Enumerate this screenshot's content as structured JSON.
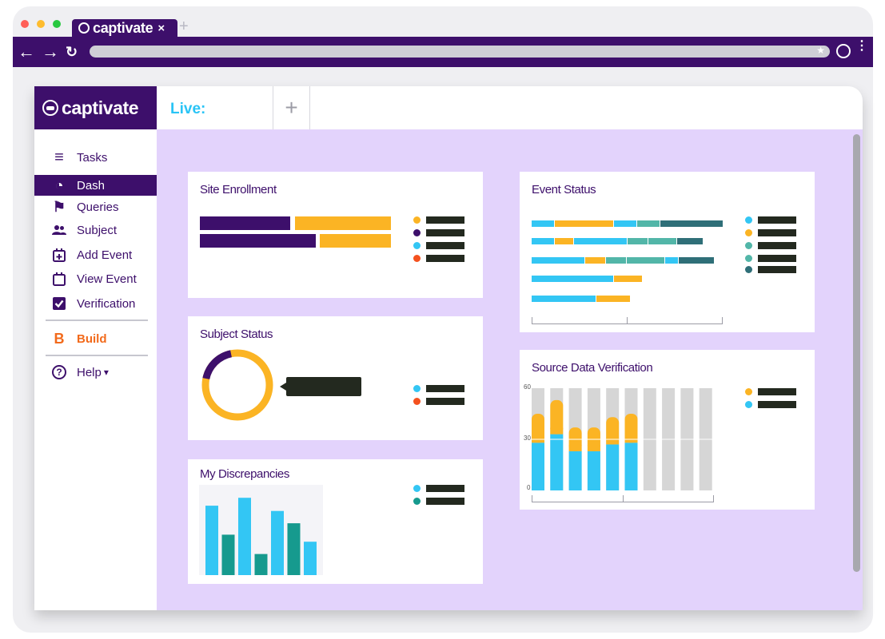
{
  "browser": {
    "tab_title": "captivate",
    "tab_close": "×",
    "new_tab": "+",
    "back": "←",
    "forward": "→",
    "reload": "↻",
    "bookmark": "★",
    "menu": "⋮",
    "traffic_colors": [
      "#ff5f57",
      "#febc2e",
      "#28c840"
    ]
  },
  "app": {
    "logo_text": "captivate",
    "live_tab": "Live:",
    "add_tab": "+"
  },
  "sidebar": {
    "items": [
      {
        "label": "Tasks",
        "icon": "≡",
        "icon_name": "tasks-icon"
      },
      {
        "label": "Dash",
        "icon": "◔",
        "icon_name": "dashboard-icon"
      },
      {
        "label": "Queries",
        "icon": "⚑",
        "icon_name": "flag-icon"
      },
      {
        "label": "Subject",
        "icon": "👥",
        "icon_name": "users-icon"
      },
      {
        "label": "Add Event",
        "icon": "⊞",
        "icon_name": "calendar-plus-icon"
      },
      {
        "label": "View Event",
        "icon": "▭",
        "icon_name": "calendar-icon"
      },
      {
        "label": "Verification",
        "icon": "☑",
        "icon_name": "check-square-icon"
      }
    ],
    "build": {
      "label": "Build",
      "icon": "B"
    },
    "help": {
      "label": "Help",
      "icon": "?",
      "caret": "▾"
    }
  },
  "cards": {
    "site_enrollment": {
      "title": "Site Enrollment"
    },
    "subject_status": {
      "title": "Subject Status"
    },
    "my_discrepancies": {
      "title": "My Discrepancies"
    },
    "event_status": {
      "title": "Event Status"
    },
    "source_data_verification": {
      "title": "Source Data Verification"
    }
  },
  "colors": {
    "purple": "#3d0f6b",
    "yellow": "#fbb424",
    "cyan": "#33c6f4",
    "orange_red": "#f4511e",
    "teal": "#169a8e",
    "teal_light": "#52b6a8",
    "teal_dark": "#2f6f78",
    "dark": "#23291f",
    "gray": "#d6d6d6"
  },
  "chart_data": [
    {
      "type": "bar",
      "orientation": "horizontal-stacked",
      "name": "Site Enrollment",
      "rows": [
        {
          "purple": 0.47,
          "yellow": 0.5
        },
        {
          "purple": 0.6,
          "yellow": 0.37
        }
      ],
      "legend_colors": [
        "#fbb424",
        "#3d0f6b",
        "#33c6f4",
        "#f4511e"
      ]
    },
    {
      "type": "pie",
      "name": "Subject Status",
      "slices": [
        {
          "color": "#fbb424",
          "value": 78
        },
        {
          "color": "#3d0f6b",
          "value": 22
        }
      ],
      "legend_colors": [
        "#33c6f4",
        "#f4511e"
      ]
    },
    {
      "type": "bar",
      "name": "My Discrepancies",
      "values": [
        0.79,
        0.46,
        0.88,
        0.24,
        0.73,
        0.59,
        0.38
      ],
      "colors": [
        "#33c6f4",
        "#169a8e",
        "#33c6f4",
        "#169a8e",
        "#33c6f4",
        "#169a8e",
        "#33c6f4"
      ],
      "legend_colors": [
        "#33c6f4",
        "#169a8e"
      ]
    },
    {
      "type": "bar",
      "orientation": "horizontal-stacked",
      "name": "Event Status",
      "rows": [
        [
          [
            "#33c6f4",
            0.12
          ],
          [
            "#fbb424",
            0.31
          ],
          [
            "#33c6f4",
            0.12
          ],
          [
            "#52b6a8",
            0.12
          ],
          [
            "#2f6f78",
            0.33
          ]
        ],
        [
          [
            "#33c6f4",
            0.12
          ],
          [
            "#fbb424",
            0.1
          ],
          [
            "#33c6f4",
            0.28
          ],
          [
            "#52b6a8",
            0.11
          ],
          [
            "#52b6a8",
            0.15
          ],
          [
            "#2f6f78",
            0.14
          ]
        ],
        [
          [
            "#33c6f4",
            0.28
          ],
          [
            "#fbb424",
            0.11
          ],
          [
            "#52b6a8",
            0.11
          ],
          [
            "#52b6a8",
            0.2
          ],
          [
            "#33c6f4",
            0.07
          ],
          [
            "#2f6f78",
            0.19
          ]
        ],
        [
          [
            "#33c6f4",
            0.43
          ],
          [
            "#fbb424",
            0.15
          ]
        ],
        [
          [
            "#33c6f4",
            0.34
          ],
          [
            "#fbb424",
            0.18
          ]
        ]
      ],
      "legend_colors": [
        "#33c6f4",
        "#fbb424",
        "#52b6a8",
        "#52b6a8",
        "#2f6f78"
      ]
    },
    {
      "type": "bar",
      "orientation": "vertical-stacked",
      "name": "Source Data Verification",
      "ylim": [
        0,
        60
      ],
      "yticks": [
        "60",
        "30",
        "0"
      ],
      "categories": 10,
      "series": [
        {
          "color": "#33c6f4",
          "values": [
            28,
            33,
            23,
            23,
            27,
            28,
            0,
            0,
            0,
            0
          ]
        },
        {
          "color": "#fbb424",
          "values": [
            17,
            20,
            14,
            14,
            16,
            17,
            0,
            0,
            0,
            0
          ]
        }
      ],
      "background_max": 60,
      "legend_colors": [
        "#fbb424",
        "#33c6f4"
      ]
    }
  ]
}
